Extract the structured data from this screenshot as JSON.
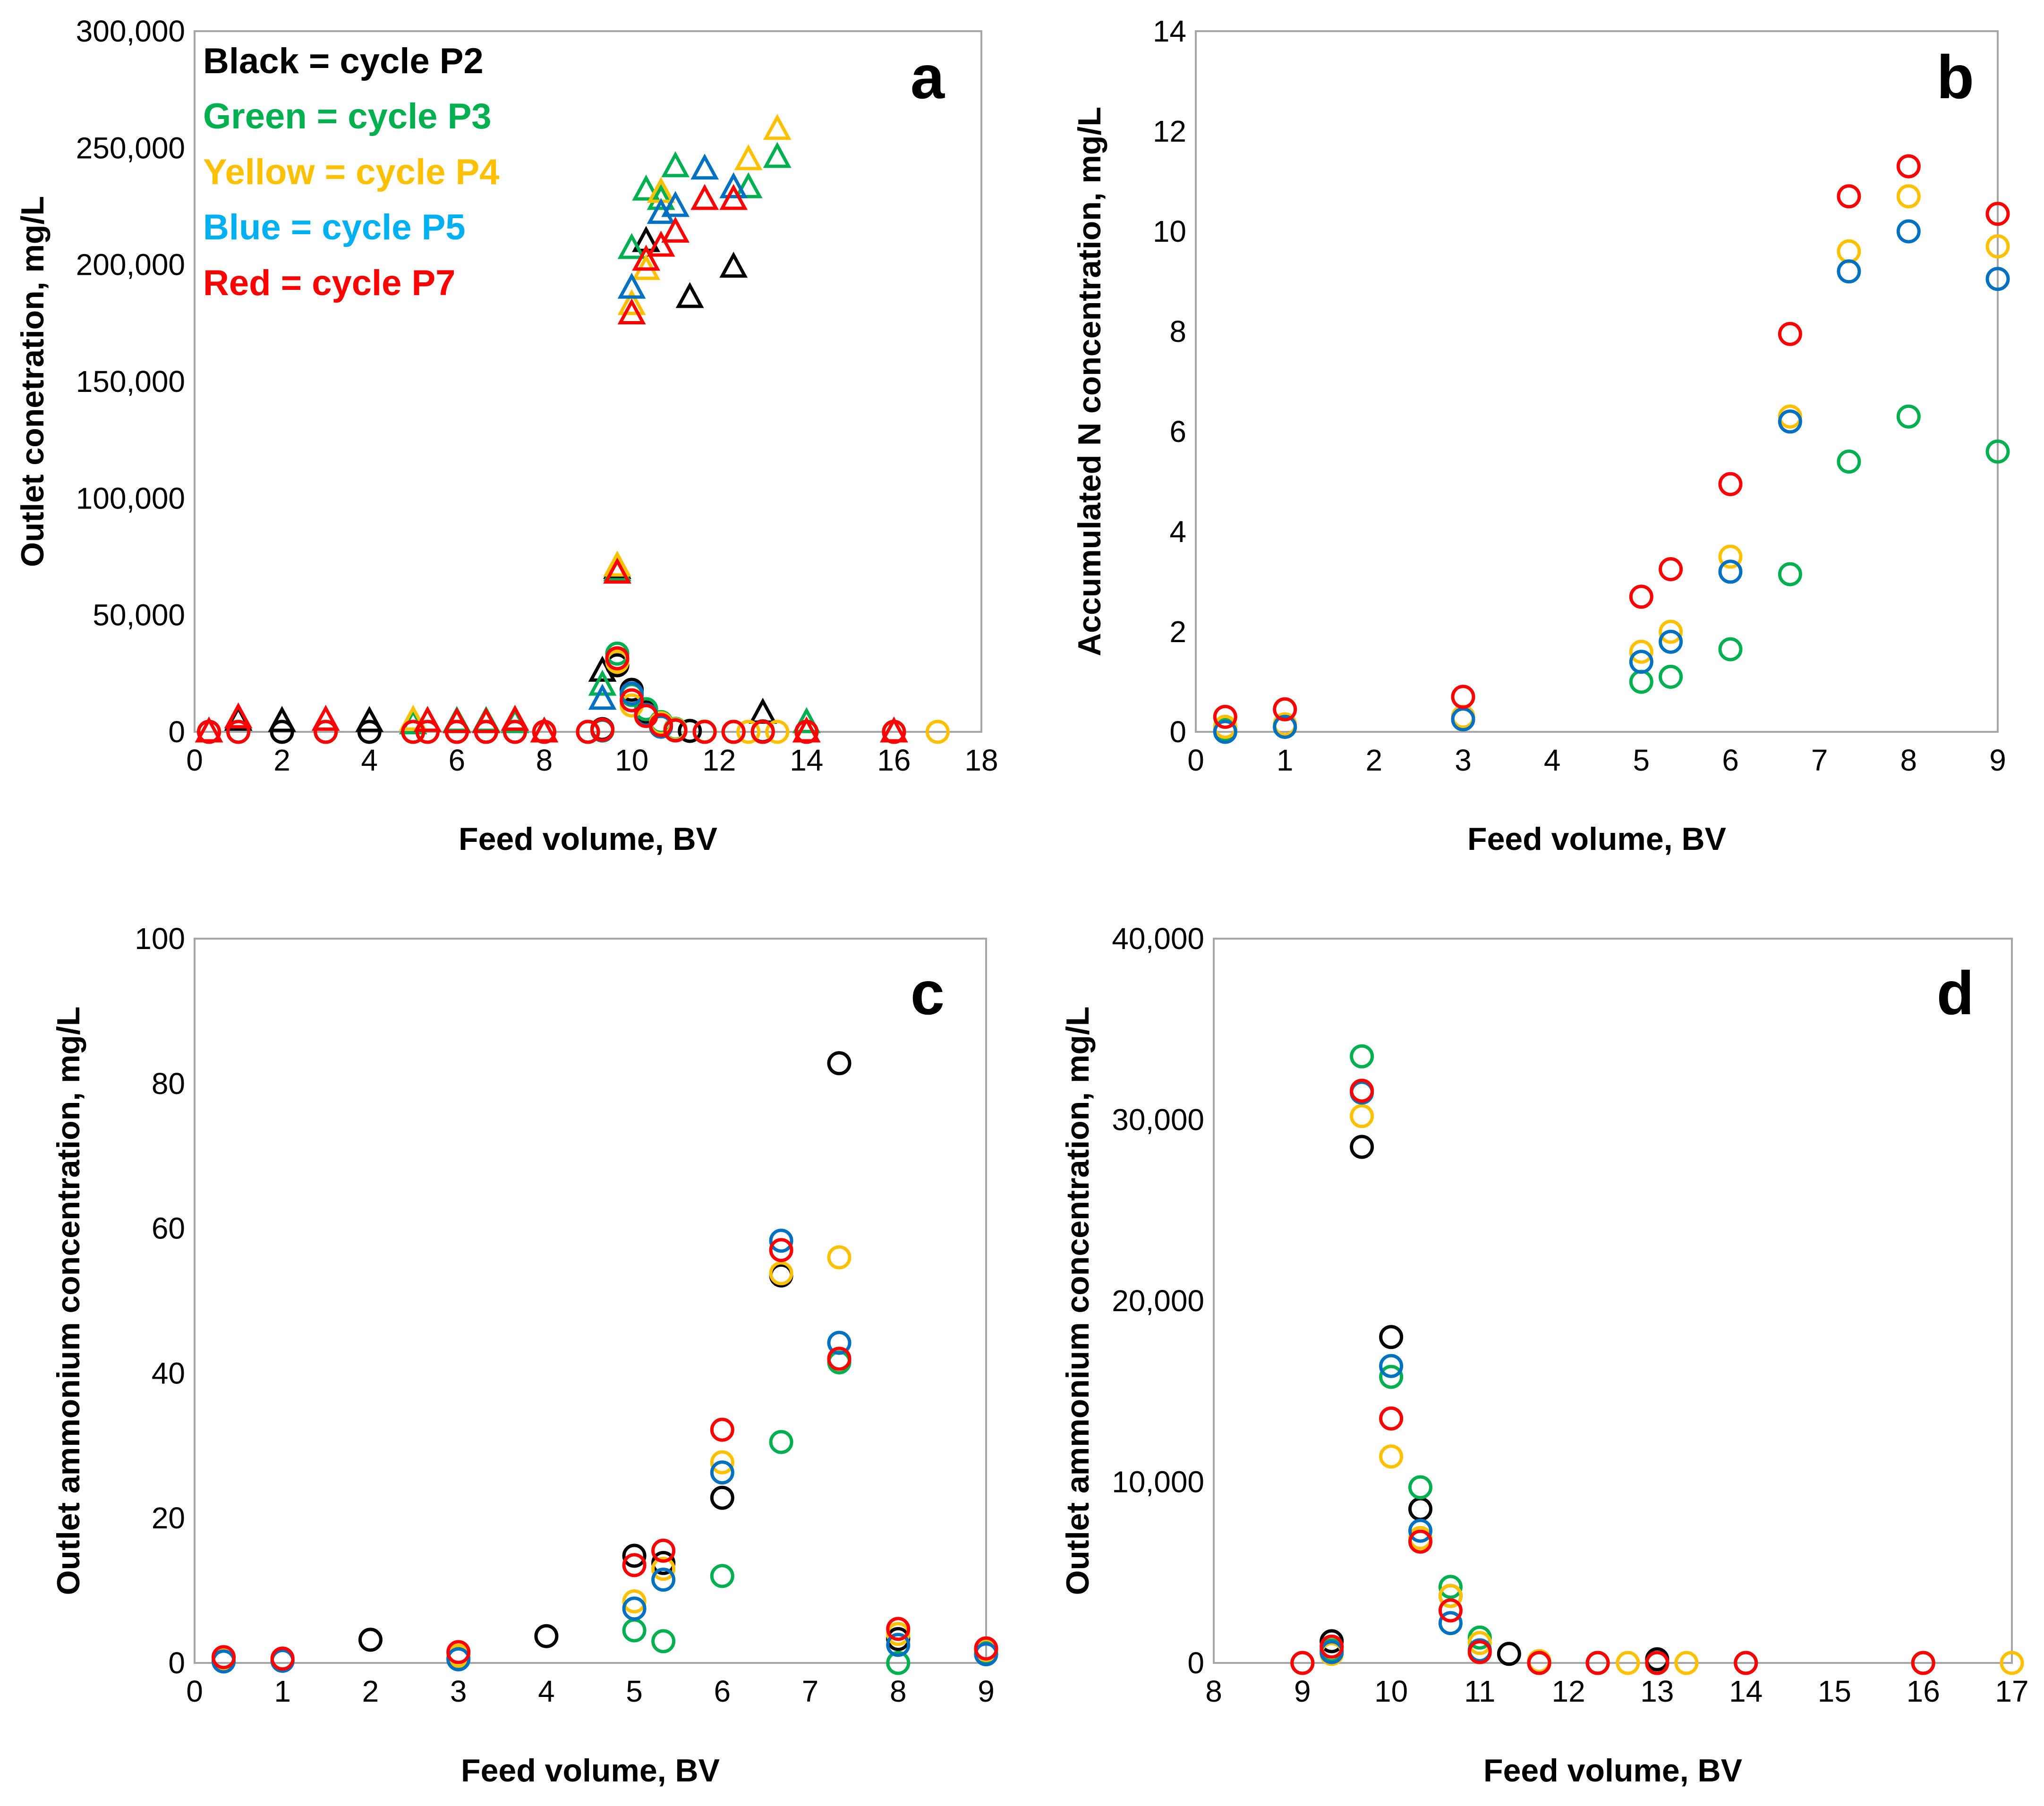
{
  "chart_data": [
    {
      "id": "a",
      "type": "scatter",
      "panel_label": "a",
      "xlabel": "Feed volume, BV",
      "ylabel": "Outlet conetration, mg/L",
      "xlim": [
        0,
        18
      ],
      "ylim": [
        0,
        300000
      ],
      "xticks": [
        0,
        2,
        4,
        6,
        8,
        10,
        12,
        14,
        16,
        18
      ],
      "yticks": [
        0,
        50000,
        100000,
        150000,
        200000,
        250000,
        300000
      ],
      "x_tick_labels": [
        "0",
        "2",
        "4",
        "6",
        "8",
        "10",
        "12",
        "14",
        "16",
        "18"
      ],
      "y_tick_labels": [
        "0",
        "50,000",
        "100,000",
        "150,000",
        "200,000",
        "250,000",
        "300,000"
      ],
      "grid": false,
      "legend": {
        "placement": "top-left",
        "entries": [
          {
            "text": "Black = cycle P2",
            "color": "#000000"
          },
          {
            "text": "Green = cycle P3",
            "color": "#00b050"
          },
          {
            "text": "Yellow = cycle P4",
            "color": "#ffc000"
          },
          {
            "text": "Blue = cycle P5",
            "color": "#00b0f0"
          },
          {
            "text": "Red = cycle P7",
            "color": "#ff0000"
          }
        ]
      },
      "series": [
        {
          "name": "P2 circle",
          "color": "#000000",
          "marker": "circle",
          "x": [
            2,
            4,
            9.33,
            9.67,
            10,
            10.33,
            10.67,
            11,
            11.33,
            12.33,
            13
          ],
          "y": [
            0,
            0,
            1200,
            28500,
            18000,
            8500,
            3500,
            600,
            400,
            0,
            200
          ]
        },
        {
          "name": "P2 triangle",
          "color": "#000000",
          "marker": "triangle",
          "x": [
            1,
            2,
            4,
            9.33,
            9.67,
            10.33,
            11.33,
            12.33,
            13
          ],
          "y": [
            5000,
            4500,
            4500,
            26000,
            70000,
            210000,
            186000,
            199000,
            8000
          ]
        },
        {
          "name": "P3 circle",
          "color": "#00b050",
          "marker": "circle",
          "x": [
            0.33,
            1,
            3,
            5,
            5.33,
            6,
            6.67,
            7.33,
            8,
            9,
            9.33,
            9.67,
            10,
            10.33,
            10.67,
            11,
            11.67,
            12.33,
            13,
            14,
            16
          ],
          "y": [
            0,
            0,
            0,
            0,
            0,
            0,
            0,
            0,
            0,
            0,
            700,
            33500,
            15800,
            9700,
            4200,
            1300,
            100,
            0,
            0,
            0,
            0
          ]
        },
        {
          "name": "P3 triangle",
          "color": "#00b050",
          "marker": "triangle",
          "x": [
            5,
            5.33,
            6,
            6.67,
            7.33,
            9.33,
            9.67,
            10,
            10.33,
            10.67,
            11,
            12.67,
            13.33,
            14
          ],
          "y": [
            3500,
            4500,
            4500,
            4500,
            4000,
            20000,
            69000,
            207000,
            232000,
            228000,
            242000,
            233000,
            246000,
            4000
          ]
        },
        {
          "name": "P4 circle",
          "color": "#ffc000",
          "marker": "circle",
          "x": [
            0.33,
            5,
            8,
            9,
            9.33,
            9.67,
            10,
            10.33,
            10.67,
            11,
            11.67,
            12.33,
            12.67,
            13,
            13.33,
            14,
            16,
            17
          ],
          "y": [
            0,
            0,
            0,
            0,
            500,
            30000,
            11300,
            6900,
            3700,
            1100,
            100,
            0,
            0,
            0,
            0,
            0,
            0,
            0
          ]
        },
        {
          "name": "P4 triangle",
          "color": "#ffc000",
          "marker": "triangle",
          "x": [
            5,
            9.67,
            10,
            10.33,
            10.67,
            12.67,
            13.33,
            14
          ],
          "y": [
            5000,
            71000,
            183000,
            198000,
            231000,
            245000,
            258000,
            0
          ]
        },
        {
          "name": "P5 circle",
          "color": "#0070c0",
          "marker": "circle",
          "x": [
            0.33,
            1,
            3,
            5,
            5.33,
            6,
            6.67,
            7.33,
            8,
            9,
            9.33,
            9.67,
            10,
            10.33,
            10.67,
            11,
            11.67,
            12.33,
            13,
            14,
            16
          ],
          "y": [
            0,
            0,
            0,
            0,
            0,
            0,
            0,
            0,
            0,
            0,
            600,
            31500,
            16400,
            7300,
            2200,
            700,
            0,
            0,
            0,
            0,
            0
          ]
        },
        {
          "name": "P5 triangle",
          "color": "#0070c0",
          "marker": "triangle",
          "x": [
            9.33,
            10,
            10.67,
            11,
            11.67,
            12.33
          ],
          "y": [
            14000,
            190000,
            222000,
            225000,
            241000,
            233000
          ]
        },
        {
          "name": "P7 circle",
          "color": "#ff0000",
          "marker": "circle",
          "x": [
            0.33,
            1,
            3,
            5,
            5.33,
            6,
            6.67,
            7.33,
            8,
            9,
            9.33,
            9.67,
            10,
            10.33,
            10.67,
            11,
            11.67,
            12.33,
            13,
            14,
            16
          ],
          "y": [
            0,
            0,
            0,
            0,
            0,
            0,
            0,
            0,
            0,
            0,
            900,
            31500,
            13500,
            6800,
            2900,
            600,
            0,
            0,
            0,
            0,
            0
          ]
        },
        {
          "name": "P7 triangle",
          "color": "#ff0000",
          "marker": "triangle",
          "x": [
            0.33,
            1,
            3,
            5.33,
            6,
            6.67,
            7.33,
            8,
            9.67,
            10,
            10.33,
            10.67,
            11,
            11.67,
            12.33,
            14,
            16
          ],
          "y": [
            0,
            6000,
            5000,
            4500,
            4000,
            4000,
            5000,
            0,
            68000,
            179000,
            202000,
            208000,
            214000,
            228000,
            228000,
            0,
            0
          ]
        }
      ]
    },
    {
      "id": "b",
      "type": "scatter",
      "panel_label": "b",
      "xlabel": "Feed volume, BV",
      "ylabel": "Accumulated N concentration, mg/L",
      "xlim": [
        0,
        9
      ],
      "ylim": [
        0,
        14
      ],
      "xticks": [
        0,
        1,
        2,
        3,
        4,
        5,
        6,
        7,
        8,
        9
      ],
      "yticks": [
        0,
        2,
        4,
        6,
        8,
        10,
        12,
        14
      ],
      "x_tick_labels": [
        "0",
        "1",
        "2",
        "3",
        "4",
        "5",
        "6",
        "7",
        "8",
        "9"
      ],
      "y_tick_labels": [
        "0",
        "2",
        "4",
        "6",
        "8",
        "10",
        "12",
        "14"
      ],
      "grid": false,
      "series": [
        {
          "name": "P3",
          "color": "#00b050",
          "marker": "circle",
          "x": [
            0.33,
            1,
            3,
            5,
            5.33,
            6,
            6.67,
            7.33,
            8,
            9
          ],
          "y": [
            0.05,
            0.1,
            0.3,
            1.0,
            1.1,
            1.65,
            3.15,
            5.4,
            6.3,
            5.6
          ]
        },
        {
          "name": "P4",
          "color": "#ffc000",
          "marker": "circle",
          "x": [
            0.33,
            1,
            3,
            5,
            5.33,
            6,
            6.67,
            7.33,
            8,
            9
          ],
          "y": [
            0.1,
            0.15,
            0.3,
            1.6,
            2.0,
            3.5,
            6.3,
            9.6,
            10.7,
            9.7
          ]
        },
        {
          "name": "P5",
          "color": "#0070c0",
          "marker": "circle",
          "x": [
            0.33,
            1,
            3,
            5,
            5.33,
            6,
            6.67,
            7.33,
            8,
            9
          ],
          "y": [
            0.0,
            0.1,
            0.25,
            1.4,
            1.8,
            3.2,
            6.2,
            9.2,
            10.0,
            9.05
          ]
        },
        {
          "name": "P7",
          "color": "#ff0000",
          "marker": "circle",
          "x": [
            0.33,
            1,
            3,
            5,
            5.33,
            6,
            6.67,
            7.33,
            8,
            9
          ],
          "y": [
            0.3,
            0.45,
            0.7,
            2.7,
            3.25,
            4.95,
            7.95,
            10.7,
            11.3,
            10.35
          ]
        }
      ]
    },
    {
      "id": "c",
      "type": "scatter",
      "panel_label": "c",
      "xlabel": "Feed volume, BV",
      "ylabel": "Outlet ammonium concentration, mg/L",
      "xlim": [
        0,
        9
      ],
      "ylim": [
        0,
        100
      ],
      "xticks": [
        0,
        1,
        2,
        3,
        4,
        5,
        6,
        7,
        8,
        9
      ],
      "yticks": [
        0,
        20,
        40,
        60,
        80,
        100
      ],
      "x_tick_labels": [
        "0",
        "1",
        "2",
        "3",
        "4",
        "5",
        "6",
        "7",
        "8",
        "9"
      ],
      "y_tick_labels": [
        "0",
        "20",
        "40",
        "60",
        "80",
        "100"
      ],
      "grid": false,
      "series": [
        {
          "name": "P2",
          "color": "#000000",
          "marker": "circle",
          "x": [
            2,
            4,
            5,
            5.33,
            6,
            6.67,
            7.33,
            8
          ],
          "y": [
            3.2,
            3.7,
            14.8,
            13.8,
            22.8,
            53.5,
            82.8,
            3.3
          ]
        },
        {
          "name": "P3",
          "color": "#00b050",
          "marker": "circle",
          "x": [
            0.33,
            1,
            3,
            5,
            5.33,
            6,
            6.67,
            7.33,
            8,
            9
          ],
          "y": [
            0.3,
            0.3,
            0.8,
            4.5,
            3.0,
            12.0,
            30.5,
            41.5,
            0.0,
            1.5
          ]
        },
        {
          "name": "P4",
          "color": "#ffc000",
          "marker": "circle",
          "x": [
            0.33,
            1,
            3,
            5,
            5.33,
            6,
            6.67,
            7.33,
            8,
            9
          ],
          "y": [
            0.5,
            0.4,
            1.0,
            8.5,
            13.0,
            27.7,
            53.8,
            56.0,
            4.0,
            1.8
          ]
        },
        {
          "name": "P5",
          "color": "#0070c0",
          "marker": "circle",
          "x": [
            0.33,
            1,
            3,
            5,
            5.33,
            6,
            6.67,
            7.33,
            8,
            9
          ],
          "y": [
            0.2,
            0.3,
            0.5,
            7.5,
            11.5,
            26.3,
            58.3,
            44.2,
            2.5,
            1.2
          ]
        },
        {
          "name": "P7",
          "color": "#ff0000",
          "marker": "circle",
          "x": [
            0.33,
            1,
            3,
            5,
            5.33,
            6,
            6.67,
            7.33,
            8,
            9
          ],
          "y": [
            0.8,
            0.6,
            1.5,
            13.5,
            15.5,
            32.2,
            57.0,
            42.0,
            4.7,
            2.0
          ]
        }
      ]
    },
    {
      "id": "d",
      "type": "scatter",
      "panel_label": "d",
      "xlabel": "Feed volume, BV",
      "ylabel": "Outlet ammonium concentration, mg/L",
      "xlim": [
        8,
        17
      ],
      "ylim": [
        0,
        40000
      ],
      "xticks": [
        8,
        9,
        10,
        11,
        12,
        13,
        14,
        15,
        16,
        17
      ],
      "yticks": [
        0,
        10000,
        20000,
        30000,
        40000
      ],
      "x_tick_labels": [
        "8",
        "9",
        "10",
        "11",
        "12",
        "13",
        "14",
        "15",
        "16",
        "17"
      ],
      "y_tick_labels": [
        "0",
        "10,000",
        "20,000",
        "30,000",
        "40,000"
      ],
      "grid": false,
      "series": [
        {
          "name": "P2",
          "color": "#000000",
          "marker": "circle",
          "x": [
            9.33,
            9.67,
            10,
            10.33,
            10.67,
            11.33,
            12.33,
            13
          ],
          "y": [
            1200,
            28500,
            18000,
            8500,
            3700,
            500,
            0,
            200
          ]
        },
        {
          "name": "P3",
          "color": "#00b050",
          "marker": "circle",
          "x": [
            9,
            9.33,
            9.67,
            10,
            10.33,
            10.67,
            11,
            11.67,
            12.33,
            13,
            14,
            16
          ],
          "y": [
            0,
            700,
            33500,
            15800,
            9700,
            4200,
            1400,
            100,
            0,
            0,
            0,
            0
          ]
        },
        {
          "name": "P4",
          "color": "#ffc000",
          "marker": "circle",
          "x": [
            9.33,
            9.67,
            10,
            10.33,
            10.67,
            11,
            11.67,
            12.33,
            12.67,
            13,
            13.33,
            16,
            17
          ],
          "y": [
            500,
            30200,
            11400,
            6900,
            3700,
            1100,
            100,
            0,
            0,
            0,
            0,
            0,
            0
          ]
        },
        {
          "name": "P5",
          "color": "#0070c0",
          "marker": "circle",
          "x": [
            9.33,
            9.67,
            10,
            10.33,
            10.67,
            11,
            11.67,
            12.33,
            13,
            14,
            16
          ],
          "y": [
            600,
            31500,
            16400,
            7300,
            2200,
            700,
            0,
            0,
            0,
            0,
            0
          ]
        },
        {
          "name": "P7",
          "color": "#ff0000",
          "marker": "circle",
          "x": [
            9,
            9.33,
            9.67,
            10,
            10.33,
            10.67,
            11,
            11.67,
            12.33,
            13,
            14,
            16
          ],
          "y": [
            0,
            900,
            31600,
            13500,
            6700,
            2900,
            600,
            0,
            0,
            0,
            0,
            0
          ]
        }
      ]
    }
  ]
}
